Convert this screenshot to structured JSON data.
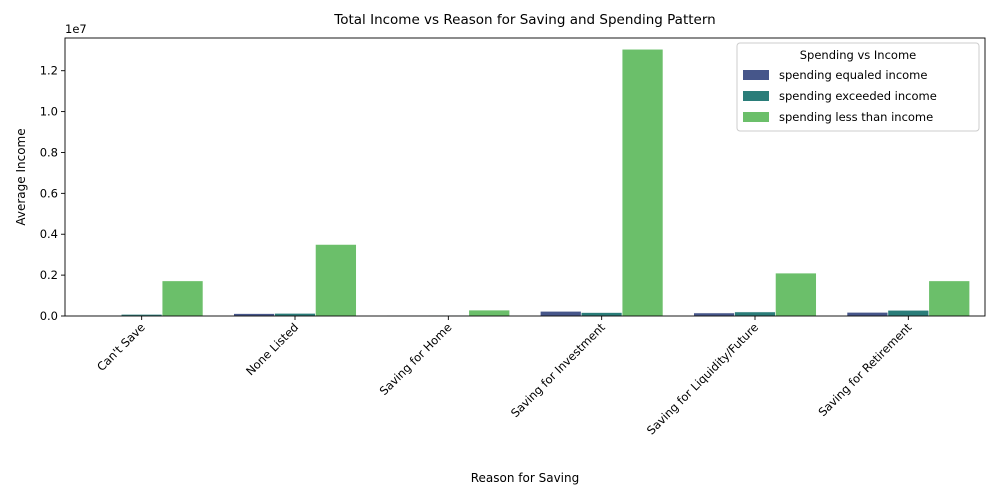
{
  "chart_data": {
    "type": "bar",
    "title": "Total Income vs Reason for Saving and Spending Pattern",
    "xlabel": "Reason for Saving",
    "ylabel": "Average Income",
    "y_offset_label": "1e7",
    "y_scale": 10000000,
    "ylim": [
      0,
      13600000
    ],
    "y_ticks": [
      0,
      2000000,
      4000000,
      6000000,
      8000000,
      10000000,
      12000000
    ],
    "y_tick_labels": [
      "0.0",
      "0.2",
      "0.4",
      "0.6",
      "0.8",
      "1.0",
      "1.2"
    ],
    "grid": false,
    "legend": {
      "title": "Spending vs Income",
      "placement": "top-right"
    },
    "categories": [
      "Can't Save",
      "None Listed",
      "Saving for Home",
      "Saving for Investment",
      "Saving for Liquidity/Future",
      "Saving for Retirement"
    ],
    "series": [
      {
        "name": "spending equaled income",
        "color": "#46568a",
        "values": [
          30000,
          120000,
          30000,
          230000,
          150000,
          180000
        ]
      },
      {
        "name": "spending exceeded income",
        "color": "#2a7d79",
        "values": [
          80000,
          130000,
          40000,
          170000,
          200000,
          280000
        ]
      },
      {
        "name": "spending less than income",
        "color": "#6bbf6a",
        "values": [
          1720000,
          3500000,
          290000,
          13050000,
          2100000,
          1720000
        ]
      }
    ]
  }
}
